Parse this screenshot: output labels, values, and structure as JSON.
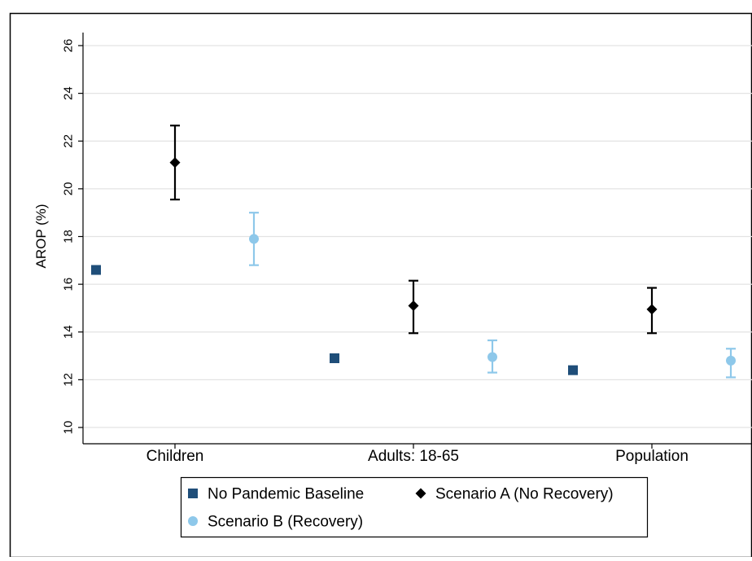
{
  "chart_data": {
    "type": "scatter",
    "ylabel": "AROP (%)",
    "xlabel": "",
    "title": "",
    "ylim": [
      10,
      26
    ],
    "yticks": [
      10,
      12,
      14,
      16,
      18,
      20,
      22,
      24,
      26
    ],
    "grid": true,
    "legend_position": "bottom",
    "categories": [
      "Children",
      "Adults: 18-65",
      "Population"
    ],
    "series": [
      {
        "name": "No Pandemic Baseline",
        "marker": "square",
        "color": "#1f4e79",
        "values": [
          16.6,
          12.9,
          12.4
        ]
      },
      {
        "name": "Scenario A (No Recovery)",
        "marker": "diamond",
        "color": "#000000",
        "values": [
          21.1,
          15.1,
          14.95
        ],
        "ci_low": [
          19.55,
          13.95,
          13.95
        ],
        "ci_high": [
          22.65,
          16.15,
          15.85
        ]
      },
      {
        "name": "Scenario B (Recovery)",
        "marker": "circle",
        "color": "#8ec8ea",
        "values": [
          17.9,
          12.95,
          12.8
        ],
        "ci_low": [
          16.8,
          12.3,
          12.1
        ],
        "ci_high": [
          19.0,
          13.65,
          13.3
        ]
      }
    ]
  }
}
